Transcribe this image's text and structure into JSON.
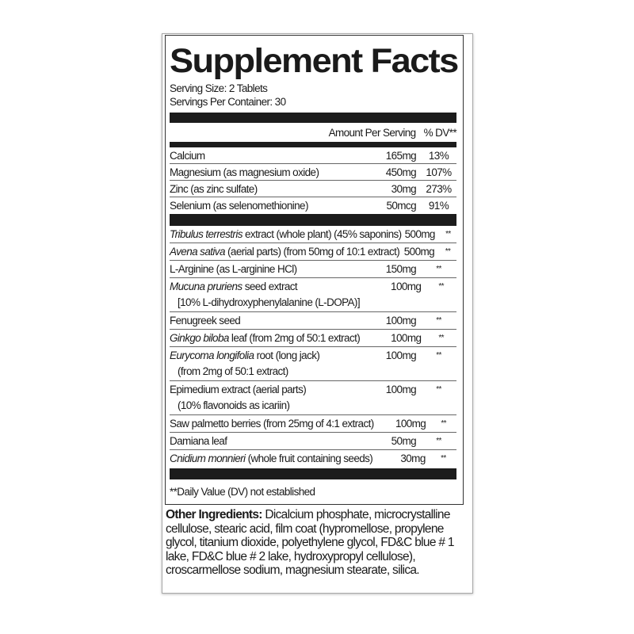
{
  "title": "Supplement Facts",
  "serving_size": "Serving Size: 2 Tablets",
  "servings_per_container": "Servings Per Container: 30",
  "header": {
    "amount": "Amount Per Serving",
    "dv": "% DV**"
  },
  "nutrients": [
    {
      "name": "Calcium",
      "amount": "165mg",
      "dv": "13%"
    },
    {
      "name": "Magnesium (as magnesium oxide)",
      "amount": "450mg",
      "dv": "107%"
    },
    {
      "name": "Zinc (as zinc sulfate)",
      "amount": "30mg",
      "dv": "273%"
    },
    {
      "name": "Selenium (as selenomethionine)",
      "amount": "50mcg",
      "dv": "91%"
    }
  ],
  "botanicals": [
    {
      "italic": "Tribulus terrestris",
      "rest": " extract (whole plant) (45% saponins)",
      "line2": "",
      "amount": "500mg",
      "dv": "**"
    },
    {
      "italic": "Avena sativa",
      "rest": " (aerial parts) (from 50mg of 10:1 extract)",
      "line2": "",
      "amount": "500mg",
      "dv": "**"
    },
    {
      "italic": "",
      "rest": "L-Arginine (as L-arginine HCl)",
      "line2": "",
      "amount": "150mg",
      "dv": "**"
    },
    {
      "italic": "Mucuna pruriens",
      "rest": " seed extract",
      "line2": "[10% L-dihydroxyphenylalanine (L-DOPA)]",
      "amount": "100mg",
      "dv": "**"
    },
    {
      "italic": "",
      "rest": "Fenugreek seed",
      "line2": "",
      "amount": "100mg",
      "dv": "**"
    },
    {
      "italic": "Ginkgo biloba",
      "rest": " leaf (from 2mg of 50:1 extract)",
      "line2": "",
      "amount": "100mg",
      "dv": "**"
    },
    {
      "italic": "Eurycoma longifolia",
      "rest": " root (long jack)",
      "line2": "(from 2mg of 50:1 extract)",
      "amount": "100mg",
      "dv": "**"
    },
    {
      "italic": "",
      "rest": "Epimedium extract (aerial parts)",
      "line2": "(10% flavonoids as icariin)",
      "amount": "100mg",
      "dv": "**"
    },
    {
      "italic": "",
      "rest": "Saw palmetto berries (from 25mg of 4:1 extract)",
      "line2": "",
      "amount": "100mg",
      "dv": "**"
    },
    {
      "italic": "",
      "rest": "Damiana leaf",
      "line2": "",
      "amount": "50mg",
      "dv": "**"
    },
    {
      "italic": "Cnidium monnieri",
      "rest": "  (whole fruit containing seeds)",
      "line2": "",
      "amount": "30mg",
      "dv": "**"
    }
  ],
  "footnote": "**Daily Value (DV) not established",
  "other_ingredients": {
    "label": "Other Ingredients:",
    "text": " Dicalcium phosphate, microcrystalline cellulose, stearic acid, film coat (hypromellose, propylene glycol, titanium dioxide, polyethylene glycol, FD&C blue # 1 lake, FD&C blue # 2 lake, hydroxypropyl cellulose), croscarmellose sodium, magnesium stearate, silica."
  }
}
